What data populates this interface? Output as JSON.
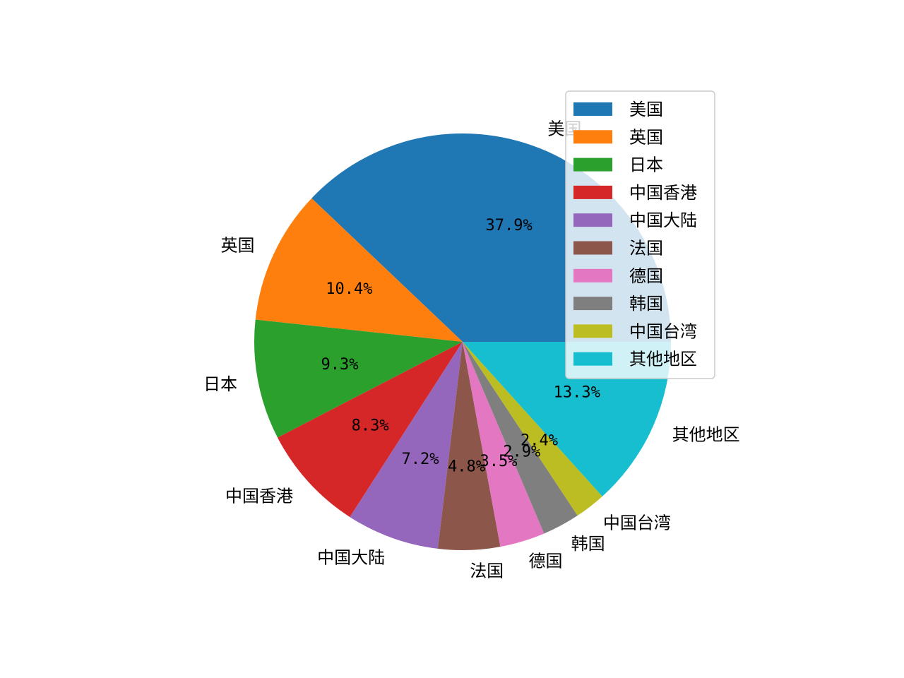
{
  "chart_data": {
    "type": "pie",
    "start_angle_deg": 0,
    "direction": "counterclockwise",
    "legend_position": "top-right",
    "slices": [
      {
        "label": "美国",
        "value": 37.9,
        "pct_text": "37.9%",
        "color": "#1f77b4"
      },
      {
        "label": "英国",
        "value": 10.4,
        "pct_text": "10.4%",
        "color": "#ff7f0e"
      },
      {
        "label": "日本",
        "value": 9.3,
        "pct_text": "9.3%",
        "color": "#2ca02c"
      },
      {
        "label": "中国香港",
        "value": 8.3,
        "pct_text": "8.3%",
        "color": "#d62728"
      },
      {
        "label": "中国大陆",
        "value": 7.2,
        "pct_text": "7.2%",
        "color": "#9467bd"
      },
      {
        "label": "法国",
        "value": 4.8,
        "pct_text": "4.8%",
        "color": "#8c564b"
      },
      {
        "label": "德国",
        "value": 3.5,
        "pct_text": "3.5%",
        "color": "#e377c2"
      },
      {
        "label": "韩国",
        "value": 2.9,
        "pct_text": "2.9%",
        "color": "#7f7f7f"
      },
      {
        "label": "中国台湾",
        "value": 2.4,
        "pct_text": "2.4%",
        "color": "#bcbd22"
      },
      {
        "label": "其他地区",
        "value": 13.3,
        "pct_text": "13.3%",
        "color": "#17becf"
      }
    ]
  }
}
